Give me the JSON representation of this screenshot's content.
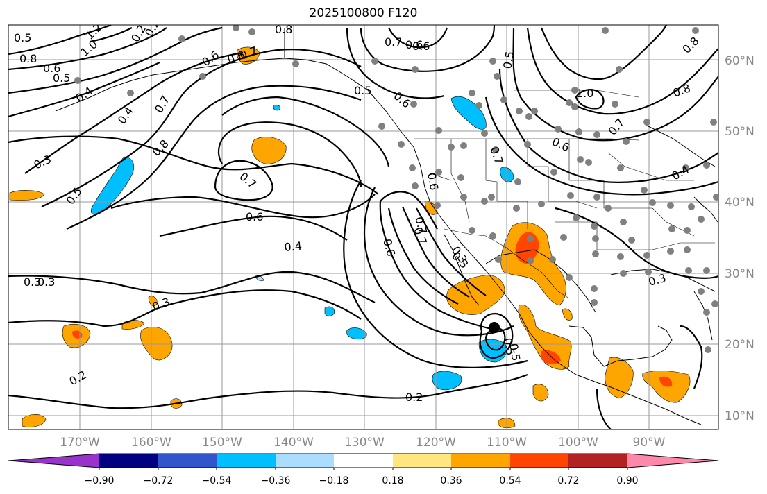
{
  "title": "2025100800 F120",
  "map": {
    "lat_ticks": [
      "60°N",
      "50°N",
      "40°N",
      "30°N",
      "20°N",
      "10°N"
    ],
    "lon_ticks": [
      "170°W",
      "160°W",
      "150°W",
      "140°W",
      "130°W",
      "120°W",
      "110°W",
      "100°W",
      "90°W"
    ],
    "contour_labels": [
      "1.2",
      "1.0",
      "0.8",
      "0.6",
      "0.5",
      "0.4",
      "0.4",
      "0.3",
      "0.2",
      "0.2",
      "0.7",
      "0.8",
      "0.6",
      "0.5",
      "0.8",
      "0.7",
      "0.6",
      "0.5",
      "0.3",
      "0.7",
      "0.5",
      "0.6",
      "0.7",
      "0.6",
      "0.4",
      "0.3",
      "0.3",
      "0.2",
      "0.2",
      "0.6",
      "0.6",
      "0.7",
      "0.3",
      "0.5",
      "0.7",
      "0.6",
      "1.0",
      "0.8",
      "0.6",
      "0.5",
      "0.7",
      "0.4",
      "0.3",
      "0.8",
      "0.7",
      "0.6",
      "0.3",
      "0.5"
    ]
  },
  "colorbar": {
    "colors": [
      "#9933cc",
      "#000080",
      "#3355cc",
      "#00bfff",
      "#aaddff",
      "#ffffff",
      "#ffe680",
      "#ffa500",
      "#ff4500",
      "#b22222",
      "#ff88aa"
    ],
    "labels": [
      "−0.90",
      "−0.72",
      "−0.54",
      "−0.36",
      "−0.18",
      "0.18",
      "0.36",
      "0.54",
      "0.72",
      "0.90"
    ]
  }
}
